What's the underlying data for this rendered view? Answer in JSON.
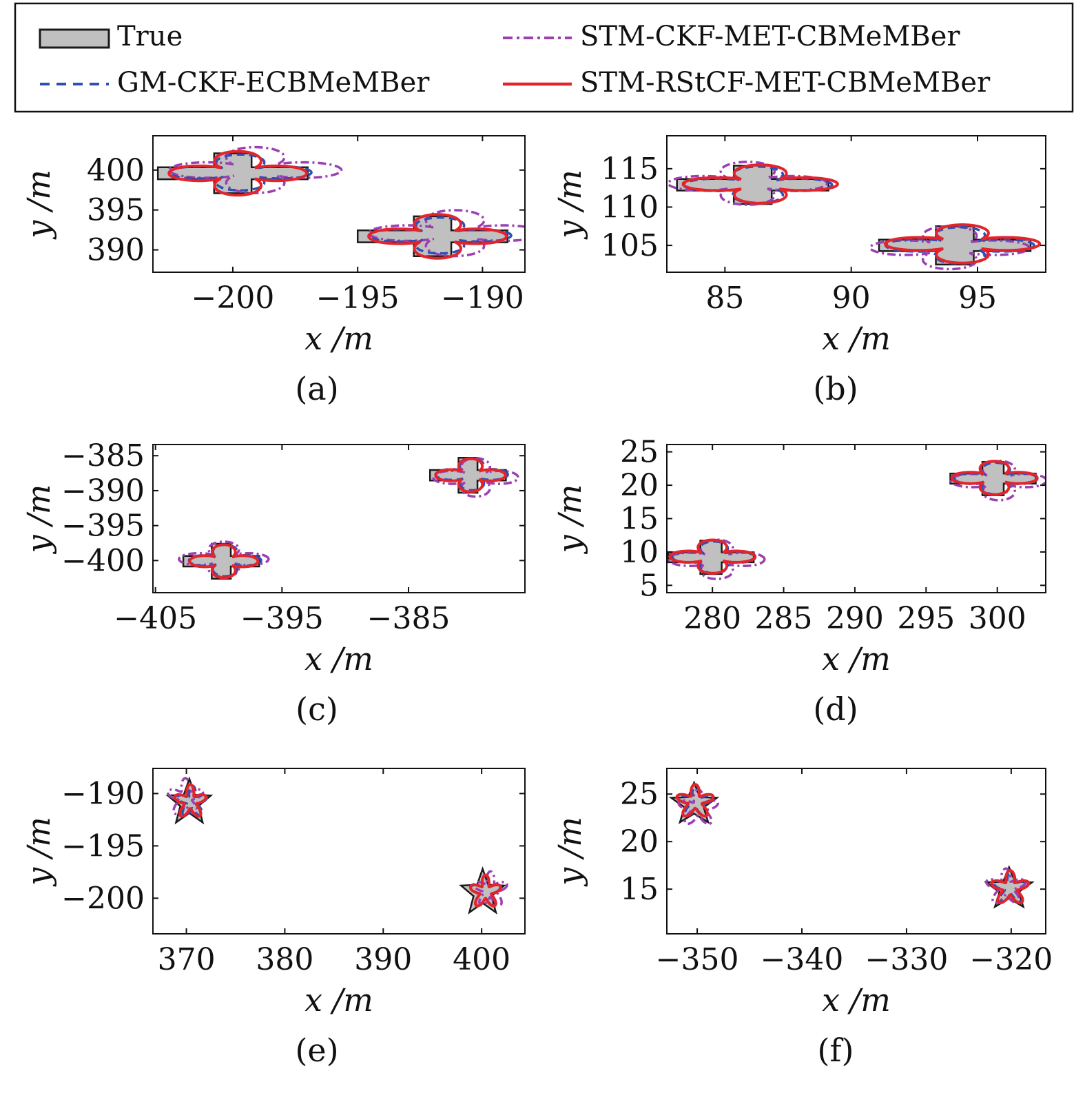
{
  "colors": {
    "true_fill": "#c0c0c0",
    "true_stroke": "#1a1a1a",
    "gm": "#2f4fb5",
    "stm_ckf": "#9b3fb2",
    "stm_rstcf": "#e3242b"
  },
  "chart_data": {
    "type": "line",
    "legend": {
      "placement": "top",
      "entries": [
        {
          "key": "true",
          "label": "True",
          "style": "filled-shape"
        },
        {
          "key": "stm_ckf",
          "label": "STM-CKF-MET-CBMeMBer",
          "style": "dash-dot"
        },
        {
          "key": "gm",
          "label": "GM-CKF-ECBMeMBer",
          "style": "dashed"
        },
        {
          "key": "stm_rstcf",
          "label": "STM-RStCF-MET-CBMeMBer",
          "style": "solid"
        }
      ]
    },
    "panels": [
      {
        "caption": "(a)",
        "xlabel": "x /m",
        "ylabel": "y /m",
        "xlim": [
          -203.2,
          -188.3
        ],
        "ylim": [
          387.2,
          404.3
        ],
        "xticks": [
          -200,
          -195,
          -190
        ],
        "yticks": [
          390,
          395,
          400
        ],
        "xticklabels": [
          "−200",
          "−195",
          "−190"
        ],
        "yticklabels": [
          "390",
          "395",
          "400"
        ],
        "targets": [
          {
            "shape": "cross",
            "cx": -200,
            "cy": 399.6,
            "hw": 3,
            "hh": 0.75,
            "vw": 0.75,
            "vh": 2.5,
            "ests": {
              "gm": {
                "dx": 0.3,
                "dy": 0.1,
                "sx": 0.95,
                "sy": 0.9
              },
              "stm_ckf": {
                "dx": 0.9,
                "dy": 0.4,
                "sx": 1.15,
                "sy": 1.15
              },
              "stm_rstcf": {
                "dx": 0.2,
                "dy": 0,
                "sx": 0.92,
                "sy": 1.1
              }
            }
          },
          {
            "shape": "cross",
            "cx": -192,
            "cy": 391.7,
            "hw": 3,
            "hh": 0.75,
            "vw": 0.75,
            "vh": 2.5,
            "ests": {
              "gm": {
                "dx": 0.3,
                "dy": 0.1,
                "sx": 0.95,
                "sy": 0.9
              },
              "stm_ckf": {
                "dx": 0.9,
                "dy": 0.4,
                "sx": 1.15,
                "sy": 1.15
              },
              "stm_rstcf": {
                "dx": 0.2,
                "dy": 0,
                "sx": 0.92,
                "sy": 1.1
              }
            }
          }
        ]
      },
      {
        "caption": "(b)",
        "xlabel": "x /m",
        "ylabel": "y /m",
        "xlim": [
          82.7,
          97.7
        ],
        "ylim": [
          101.5,
          119.3
        ],
        "xticks": [
          85,
          90,
          95
        ],
        "yticks": [
          105,
          110,
          115
        ],
        "xticklabels": [
          "85",
          "90",
          "95"
        ],
        "yticklabels": [
          "105",
          "110",
          "115"
        ],
        "targets": [
          {
            "shape": "cross",
            "cx": 86.1,
            "cy": 112.9,
            "hw": 3,
            "hh": 0.75,
            "vw": 0.75,
            "vh": 2.5,
            "ests": {
              "gm": {
                "dx": 0.2,
                "dy": 0,
                "sx": 0.98,
                "sy": 0.95
              },
              "stm_ckf": {
                "dx": -0.2,
                "dy": 0.2,
                "sx": 1.05,
                "sy": 1.12
              },
              "stm_rstcf": {
                "dx": 0.3,
                "dy": 0.1,
                "sx": 1.02,
                "sy": 1.0
              }
            }
          },
          {
            "shape": "cross",
            "cx": 94.1,
            "cy": 105.0,
            "hw": 3,
            "hh": 0.75,
            "vw": 0.75,
            "vh": 2.5,
            "ests": {
              "gm": {
                "dx": 0.2,
                "dy": 0,
                "sx": 0.98,
                "sy": 0.95
              },
              "stm_ckf": {
                "dx": -0.2,
                "dy": -0.3,
                "sx": 1.05,
                "sy": 1.12
              },
              "stm_rstcf": {
                "dx": 0.3,
                "dy": 0.2,
                "sx": 1.02,
                "sy": 1.0
              }
            }
          }
        ]
      },
      {
        "caption": "(c)",
        "xlabel": "x /m",
        "ylabel": "y /m",
        "xlim": [
          -405.2,
          -375.8
        ],
        "ylim": [
          -404.6,
          -383.4
        ],
        "xticks": [
          -405,
          -395,
          -385
        ],
        "yticks": [
          -400,
          -395,
          -390,
          -385
        ],
        "xticklabels": [
          "−405",
          "−395",
          "−385"
        ],
        "yticklabels": [
          "−400",
          "−395",
          "−390",
          "−385"
        ],
        "targets": [
          {
            "shape": "cross",
            "cx": -399.8,
            "cy": -400.1,
            "hw": 3,
            "hh": 0.75,
            "vw": 0.75,
            "vh": 2.5,
            "ests": {
              "gm": {
                "dx": 0.3,
                "dy": 0.1,
                "sx": 0.95,
                "sy": 0.9
              },
              "stm_ckf": {
                "dx": 0.2,
                "dy": 0.3,
                "sx": 1.18,
                "sy": 1.0
              },
              "stm_rstcf": {
                "dx": 0.2,
                "dy": 0,
                "sx": 0.9,
                "sy": 0.95
              }
            }
          },
          {
            "shape": "cross",
            "cx": -380.3,
            "cy": -387.8,
            "hw": 3,
            "hh": 0.75,
            "vw": 0.75,
            "vh": 2.5,
            "ests": {
              "gm": {
                "dx": 0.3,
                "dy": 0.1,
                "sx": 0.95,
                "sy": 0.9
              },
              "stm_ckf": {
                "dx": 0.6,
                "dy": -0.3,
                "sx": 1.12,
                "sy": 1.1
              },
              "stm_rstcf": {
                "dx": 0.2,
                "dy": 0,
                "sx": 0.92,
                "sy": 0.95
              }
            }
          }
        ]
      },
      {
        "caption": "(d)",
        "xlabel": "x /m",
        "ylabel": "y /m",
        "xlim": [
          276.8,
          303.4
        ],
        "ylim": [
          3.9,
          26.1
        ],
        "xticks": [
          280,
          285,
          290,
          295,
          300
        ],
        "yticks": [
          5,
          10,
          15,
          20,
          25
        ],
        "xticklabels": [
          "280",
          "285",
          "290",
          "295",
          "300"
        ],
        "yticklabels": [
          "5",
          "10",
          "15",
          "20",
          "25"
        ],
        "targets": [
          {
            "shape": "cross",
            "cx": 279.9,
            "cy": 9.2,
            "hw": 3,
            "hh": 0.75,
            "vw": 0.75,
            "vh": 2.5,
            "ests": {
              "gm": {
                "dx": 0.2,
                "dy": 0,
                "sx": 0.97,
                "sy": 0.95
              },
              "stm_ckf": {
                "dx": 0.4,
                "dy": -0.3,
                "sx": 1.12,
                "sy": 1.18
              },
              "stm_rstcf": {
                "dx": 0.1,
                "dy": 0.1,
                "sx": 1.0,
                "sy": 1.0
              }
            }
          },
          {
            "shape": "cross",
            "cx": 299.7,
            "cy": 21.0,
            "hw": 3,
            "hh": 0.75,
            "vw": 0.75,
            "vh": 2.5,
            "ests": {
              "gm": {
                "dx": 0.2,
                "dy": 0,
                "sx": 0.97,
                "sy": 0.95
              },
              "stm_ckf": {
                "dx": 0.4,
                "dy": -0.3,
                "sx": 1.12,
                "sy": 1.18
              },
              "stm_rstcf": {
                "dx": 0.1,
                "dy": 0.1,
                "sx": 1.0,
                "sy": 1.0
              }
            }
          }
        ]
      },
      {
        "caption": "(e)",
        "xlabel": "x /m",
        "ylabel": "y /m",
        "xlim": [
          366.6,
          404.4
        ],
        "ylim": [
          -203.4,
          -187.6
        ],
        "xticks": [
          370,
          380,
          390,
          400
        ],
        "yticks": [
          -200,
          -195,
          -190
        ],
        "xticklabels": [
          "370",
          "380",
          "390",
          "400"
        ],
        "yticklabels": [
          "−200",
          "−195",
          "−190"
        ],
        "targets": [
          {
            "shape": "star",
            "cx": 370.3,
            "cy": -190.9,
            "r": 2.3,
            "ests": {
              "gm": {
                "dx": 0.3,
                "dy": 0.1,
                "sx": 0.75,
                "sy": 0.75
              },
              "stm_ckf": {
                "dx": -0.4,
                "dy": 0.5,
                "sx": 0.9,
                "sy": 0.9
              },
              "stm_rstcf": {
                "dx": 0.1,
                "dy": 0.1,
                "sx": 0.8,
                "sy": 0.8
              }
            }
          },
          {
            "shape": "star",
            "cx": 400.1,
            "cy": -199.5,
            "r": 2.3,
            "ests": {
              "gm": {
                "dx": 0.3,
                "dy": 0.1,
                "sx": 0.75,
                "sy": 0.75
              },
              "stm_ckf": {
                "dx": 0.8,
                "dy": 0.3,
                "sx": 0.85,
                "sy": 0.85
              },
              "stm_rstcf": {
                "dx": 0.3,
                "dy": 0.1,
                "sx": 0.78,
                "sy": 0.78
              }
            }
          }
        ]
      },
      {
        "caption": "(f)",
        "xlabel": "x /m",
        "ylabel": "y /m",
        "xlim": [
          -352.9,
          -316.7
        ],
        "ylim": [
          10.3,
          27.7
        ],
        "xticks": [
          -350,
          -340,
          -330,
          -320
        ],
        "yticks": [
          15,
          20,
          25
        ],
        "xticklabels": [
          "−350",
          "−340",
          "−330",
          "−320"
        ],
        "yticklabels": [
          "15",
          "20",
          "25"
        ],
        "targets": [
          {
            "shape": "star",
            "cx": -350.3,
            "cy": 23.9,
            "r": 2.3,
            "ests": {
              "gm": {
                "dx": 0.2,
                "dy": 0.2,
                "sx": 0.8,
                "sy": 0.8
              },
              "stm_ckf": {
                "dx": 0.4,
                "dy": -0.4,
                "sx": 0.95,
                "sy": 0.95
              },
              "stm_rstcf": {
                "dx": 0.1,
                "dy": 0.3,
                "sx": 0.88,
                "sy": 0.88
              }
            }
          },
          {
            "shape": "star",
            "cx": -320.2,
            "cy": 15.0,
            "r": 2.3,
            "ests": {
              "gm": {
                "dx": 0.2,
                "dy": 0.1,
                "sx": 0.82,
                "sy": 0.82
              },
              "stm_ckf": {
                "dx": -0.3,
                "dy": 0.2,
                "sx": 0.95,
                "sy": 0.95
              },
              "stm_rstcf": {
                "dx": 0.1,
                "dy": 0.1,
                "sx": 0.9,
                "sy": 0.9
              }
            }
          }
        ]
      }
    ]
  }
}
